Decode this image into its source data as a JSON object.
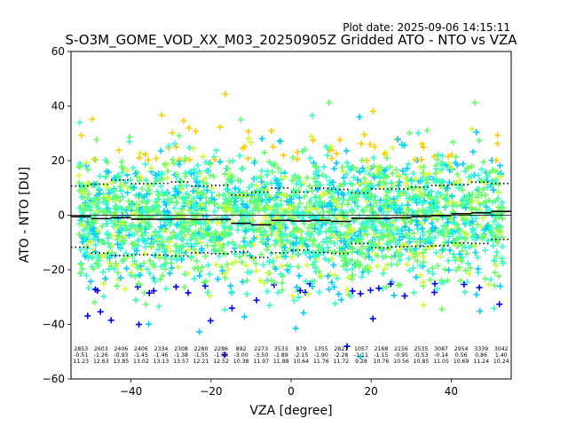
{
  "chart_data": {
    "type": "scatter",
    "plot_date": "Plot date: 2025-09-06 14:15:11",
    "title": "S-O3M_GOME_VOD_XX_M03_20250905Z Gridded ATO - NTO vs VZA",
    "xlabel": "VZA [degree]",
    "ylabel": "ATO - NTO [DU]",
    "xlim": [
      -55,
      55
    ],
    "ylim": [
      -60,
      60
    ],
    "xticks": [
      -40,
      -20,
      0,
      20,
      40
    ],
    "yticks": [
      -60,
      -40,
      -20,
      0,
      20,
      40,
      60
    ],
    "colors": {
      "axis": "#000000",
      "cyan": "#00ccff",
      "green": "#66ff66",
      "aqua": "#33ffcc",
      "yellow": "#ffcc00",
      "lime": "#ccff33",
      "blue": "#0000ff"
    },
    "bins": [
      {
        "vza": -52.5,
        "count": "2853",
        "mean": "-0.51",
        "std": "11.23"
      },
      {
        "vza": -47.5,
        "count": "2603",
        "mean": "-1.26",
        "std": "12.63"
      },
      {
        "vza": -42.5,
        "count": "2406",
        "mean": "-0.93",
        "std": "13.85"
      },
      {
        "vza": -37.5,
        "count": "2406",
        "mean": "-1.45",
        "std": "13.02"
      },
      {
        "vza": -32.5,
        "count": "2334",
        "mean": "-1.46",
        "std": "13.13"
      },
      {
        "vza": -27.5,
        "count": "2308",
        "mean": "-1.38",
        "std": "13.57"
      },
      {
        "vza": -22.5,
        "count": "2280",
        "mean": "-1.55",
        "std": "12.21"
      },
      {
        "vza": -17.5,
        "count": "2286",
        "mean": "-1.58",
        "std": "12.52"
      },
      {
        "vza": -12.5,
        "count": "892",
        "mean": "-3.00",
        "std": "10.38"
      },
      {
        "vza": -7.5,
        "count": "2273",
        "mean": "-3.50",
        "std": "11.97"
      },
      {
        "vza": -2.5,
        "count": "3533",
        "mean": "-1.89",
        "std": "11.88"
      },
      {
        "vza": 2.5,
        "count": "879",
        "mean": "-2.15",
        "std": "10.64"
      },
      {
        "vza": 7.5,
        "count": "1355",
        "mean": "-1.90",
        "std": "11.76"
      },
      {
        "vza": 12.5,
        "count": "2821",
        "mean": "-2.28",
        "std": "11.72"
      },
      {
        "vza": 17.5,
        "count": "1057",
        "mean": "-1.11",
        "std": "9.28"
      },
      {
        "vza": 22.5,
        "count": "2168",
        "mean": "-1.15",
        "std": "10.76"
      },
      {
        "vza": 27.5,
        "count": "2156",
        "mean": "-0.95",
        "std": "10.56"
      },
      {
        "vza": 32.5,
        "count": "2535",
        "mean": "-0.53",
        "std": "10.85"
      },
      {
        "vza": 37.5,
        "count": "3087",
        "mean": "-0.14",
        "std": "11.05"
      },
      {
        "vza": 42.5,
        "count": "2954",
        "mean": "0.56",
        "std": "10.69"
      },
      {
        "vza": 47.5,
        "count": "3339",
        "mean": "0.86",
        "std": "11.24"
      },
      {
        "vza": 52.5,
        "count": "3042",
        "mean": "1.40",
        "std": "10.24"
      }
    ]
  }
}
